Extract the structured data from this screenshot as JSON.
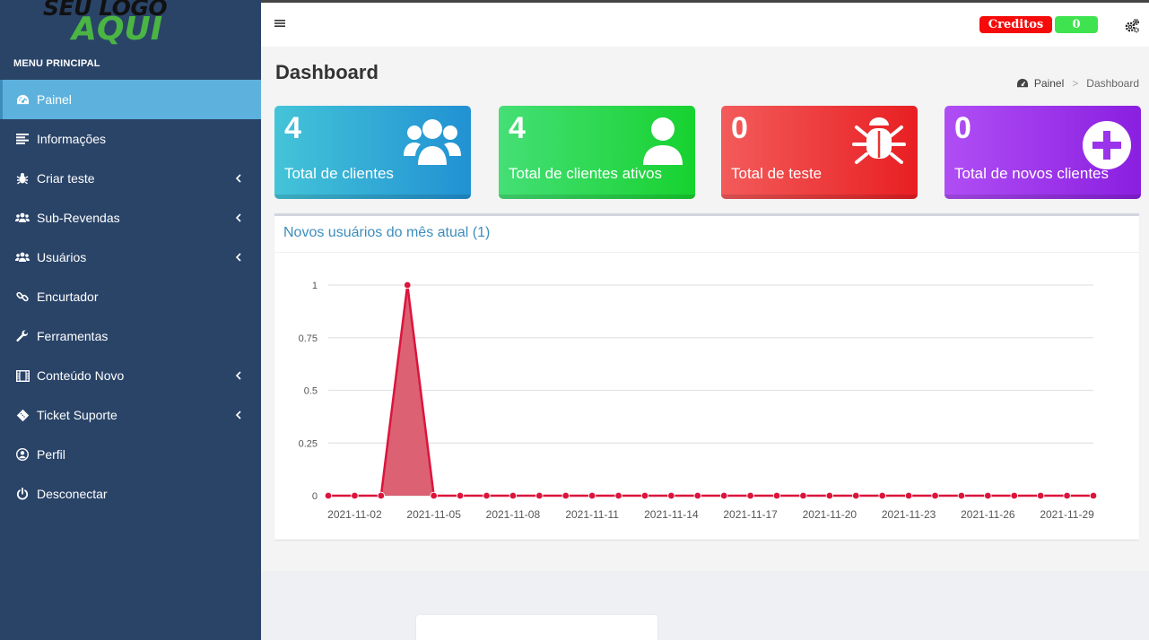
{
  "logo": {
    "line1": "SEU LOGO",
    "line2": "AQUI"
  },
  "sidebar": {
    "header": "MENU PRINCIPAL",
    "items": [
      {
        "label": "Painel",
        "icon": "dashboard-icon",
        "active": true,
        "submenu": false
      },
      {
        "label": "Informações",
        "icon": "list-icon",
        "active": false,
        "submenu": false
      },
      {
        "label": "Criar teste",
        "icon": "bug-icon",
        "active": false,
        "submenu": true
      },
      {
        "label": "Sub-Revendas",
        "icon": "users-icon",
        "active": false,
        "submenu": true
      },
      {
        "label": "Usuários",
        "icon": "users-icon",
        "active": false,
        "submenu": true
      },
      {
        "label": "Encurtador",
        "icon": "link-icon",
        "active": false,
        "submenu": false
      },
      {
        "label": "Ferramentas",
        "icon": "wrench-icon",
        "active": false,
        "submenu": false
      },
      {
        "label": "Conteúdo Novo",
        "icon": "film-icon",
        "active": false,
        "submenu": true
      },
      {
        "label": "Ticket Suporte",
        "icon": "ticket-icon",
        "active": false,
        "submenu": true
      },
      {
        "label": "Perfil",
        "icon": "user-circle-icon",
        "active": false,
        "submenu": false
      },
      {
        "label": "Desconectar",
        "icon": "power-icon",
        "active": false,
        "submenu": false
      }
    ]
  },
  "topbar": {
    "credits_label": "Creditos",
    "credits_value": "0"
  },
  "page": {
    "title": "Dashboard",
    "breadcrumb": {
      "home": "Painel",
      "separator": ">",
      "current": "Dashboard"
    }
  },
  "cards": [
    {
      "value": "4",
      "label": "Total de clientes",
      "icon": "users-icon"
    },
    {
      "value": "4",
      "label": "Total de clientes ativos",
      "icon": "user-icon"
    },
    {
      "value": "0",
      "label": "Total de teste",
      "icon": "bug-icon"
    },
    {
      "value": "0",
      "label": "Total de novos clientes",
      "icon": "plus-circle-icon"
    }
  ],
  "chart_box": {
    "title": "Novos usuários do mês atual (1)"
  },
  "colors": {
    "sidebar": "#2a4468",
    "active_item": "#5db2dd",
    "series": "#dc143c",
    "series_fill": "#d9596c"
  },
  "chart_data": {
    "type": "area",
    "x": [
      "2021-11-01",
      "2021-11-02",
      "2021-11-03",
      "2021-11-04",
      "2021-11-05",
      "2021-11-06",
      "2021-11-07",
      "2021-11-08",
      "2021-11-09",
      "2021-11-10",
      "2021-11-11",
      "2021-11-12",
      "2021-11-13",
      "2021-11-14",
      "2021-11-15",
      "2021-11-16",
      "2021-11-17",
      "2021-11-18",
      "2021-11-19",
      "2021-11-20",
      "2021-11-21",
      "2021-11-22",
      "2021-11-23",
      "2021-11-24",
      "2021-11-25",
      "2021-11-26",
      "2021-11-27",
      "2021-11-28",
      "2021-11-29",
      "2021-11-30"
    ],
    "series": [
      {
        "values": [
          0,
          0,
          0,
          1,
          0,
          0,
          0,
          0,
          0,
          0,
          0,
          0,
          0,
          0,
          0,
          0,
          0,
          0,
          0,
          0,
          0,
          0,
          0,
          0,
          0,
          0,
          0,
          0,
          0,
          0
        ]
      }
    ],
    "x_tick_labels": [
      "2021-11-02",
      "2021-11-05",
      "2021-11-08",
      "2021-11-11",
      "2021-11-14",
      "2021-11-17",
      "2021-11-20",
      "2021-11-23",
      "2021-11-26",
      "2021-11-29"
    ],
    "y_ticks": [
      "0",
      "0.25",
      "0.5",
      "0.75",
      "1"
    ],
    "ylim": [
      0,
      1
    ],
    "grid": true,
    "title": "",
    "xlabel": "",
    "ylabel": ""
  }
}
